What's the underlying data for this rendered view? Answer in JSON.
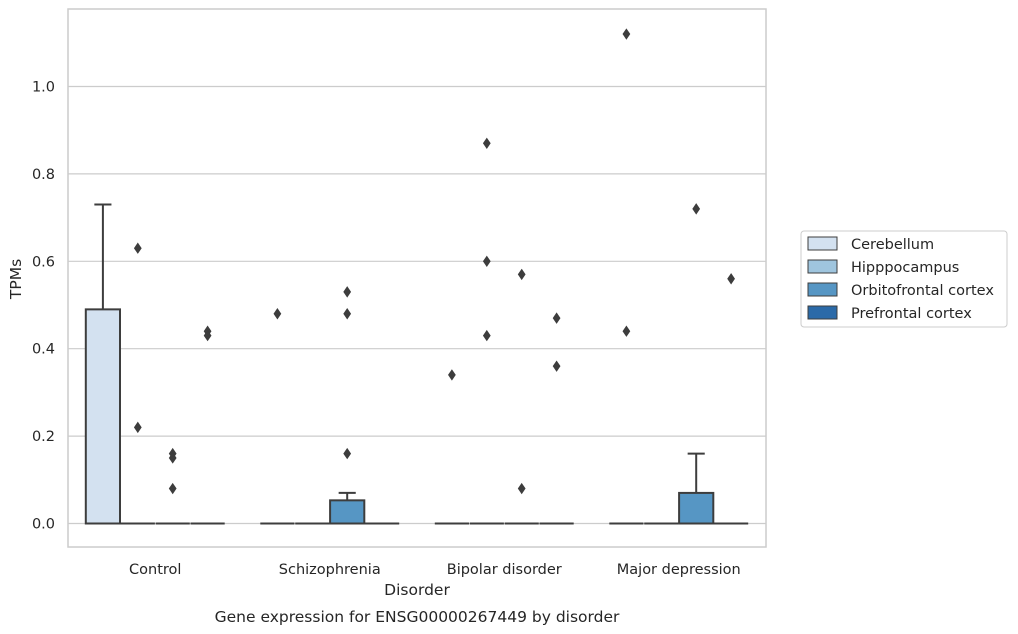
{
  "chart_data": {
    "type": "box",
    "caption": "Gene expression for ENSG00000267449 by disorder",
    "xlabel": "Disorder",
    "ylabel": "TPMs",
    "ylim": [
      -0.055,
      1.18
    ],
    "yticks": [
      0.0,
      0.2,
      0.4,
      0.6,
      0.8,
      1.0
    ],
    "ytick_labels": [
      "0.0",
      "0.2",
      "0.4",
      "0.6",
      "0.8",
      "1.0"
    ],
    "grid": "horizontal",
    "legend_position": "right",
    "categories": [
      "Control",
      "Schizophrenia",
      "Bipolar disorder",
      "Major depression"
    ],
    "series": [
      {
        "name": "Cerebellum",
        "color": "#d3e1f0",
        "boxes": [
          {
            "q1": 0.0,
            "median": 0.0,
            "q3": 0.49,
            "whisker_low": 0.0,
            "whisker_high": 0.73,
            "outliers": []
          },
          {
            "q1": 0.0,
            "median": 0.0,
            "q3": 0.0,
            "whisker_low": 0.0,
            "whisker_high": 0.0,
            "outliers": [
              0.48
            ]
          },
          {
            "q1": 0.0,
            "median": 0.0,
            "q3": 0.0,
            "whisker_low": 0.0,
            "whisker_high": 0.0,
            "outliers": [
              0.34
            ]
          },
          {
            "q1": 0.0,
            "median": 0.0,
            "q3": 0.0,
            "whisker_low": 0.0,
            "whisker_high": 0.0,
            "outliers": [
              1.12,
              0.44
            ]
          }
        ]
      },
      {
        "name": "Hipppocampus",
        "color": "#9fc5de",
        "boxes": [
          {
            "q1": 0.0,
            "median": 0.0,
            "q3": 0.0,
            "whisker_low": 0.0,
            "whisker_high": 0.0,
            "outliers": [
              0.63,
              0.22
            ]
          },
          {
            "q1": 0.0,
            "median": 0.0,
            "q3": 0.0,
            "whisker_low": 0.0,
            "whisker_high": 0.0,
            "outliers": []
          },
          {
            "q1": 0.0,
            "median": 0.0,
            "q3": 0.0,
            "whisker_low": 0.0,
            "whisker_high": 0.0,
            "outliers": [
              0.87,
              0.6,
              0.43
            ]
          },
          {
            "q1": 0.0,
            "median": 0.0,
            "q3": 0.0,
            "whisker_low": 0.0,
            "whisker_high": 0.0,
            "outliers": []
          }
        ]
      },
      {
        "name": "Orbitofrontal cortex",
        "color": "#5696c4",
        "boxes": [
          {
            "q1": 0.0,
            "median": 0.0,
            "q3": 0.0,
            "whisker_low": 0.0,
            "whisker_high": 0.0,
            "outliers": [
              0.16,
              0.15,
              0.08
            ]
          },
          {
            "q1": 0.0,
            "median": 0.0,
            "q3": 0.053,
            "whisker_low": 0.0,
            "whisker_high": 0.07,
            "outliers": [
              0.53,
              0.48,
              0.16
            ]
          },
          {
            "q1": 0.0,
            "median": 0.0,
            "q3": 0.0,
            "whisker_low": 0.0,
            "whisker_high": 0.0,
            "outliers": [
              0.57,
              0.08
            ]
          },
          {
            "q1": 0.0,
            "median": 0.0,
            "q3": 0.07,
            "whisker_low": 0.0,
            "whisker_high": 0.16,
            "outliers": [
              0.72
            ]
          }
        ]
      },
      {
        "name": "Prefrontal cortex",
        "color": "#2b6aa8",
        "boxes": [
          {
            "q1": 0.0,
            "median": 0.0,
            "q3": 0.0,
            "whisker_low": 0.0,
            "whisker_high": 0.0,
            "outliers": [
              0.44,
              0.43
            ]
          },
          {
            "q1": 0.0,
            "median": 0.0,
            "q3": 0.0,
            "whisker_low": 0.0,
            "whisker_high": 0.0,
            "outliers": []
          },
          {
            "q1": 0.0,
            "median": 0.0,
            "q3": 0.0,
            "whisker_low": 0.0,
            "whisker_high": 0.0,
            "outliers": [
              0.47,
              0.36
            ]
          },
          {
            "q1": 0.0,
            "median": 0.0,
            "q3": 0.0,
            "whisker_low": 0.0,
            "whisker_high": 0.0,
            "outliers": [
              0.56
            ]
          }
        ]
      }
    ],
    "colors": {
      "grid": "#cccccc",
      "frame": "#cccccc",
      "box_edge": "#3d3d3d",
      "text": "#262626"
    }
  }
}
